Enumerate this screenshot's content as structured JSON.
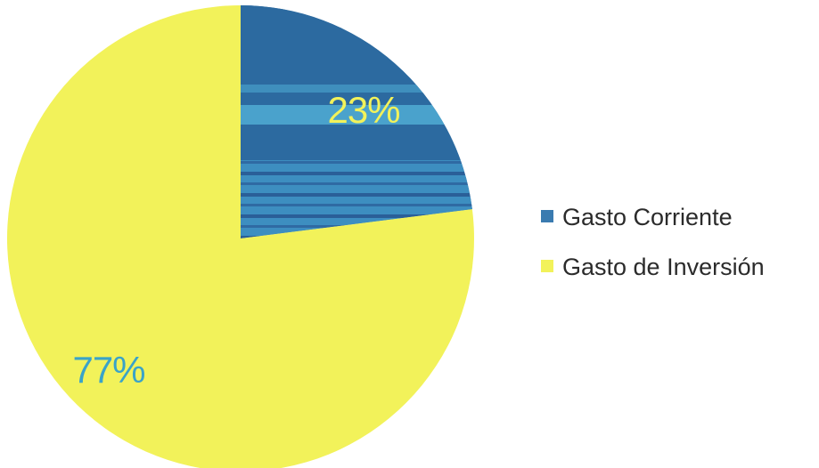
{
  "chart_data": {
    "type": "pie",
    "categories": [
      "Gasto Corriente",
      "Gasto de Inversión"
    ],
    "values": [
      23,
      77
    ],
    "data_labels": [
      "23%",
      "77%"
    ],
    "colors": [
      "#2f6fa3",
      "#f2f25a"
    ],
    "label_colors": [
      "#f2f25a",
      "#3aa3c8"
    ],
    "legend_position": "right",
    "legend": [
      {
        "name": "Gasto Corriente",
        "color": "#3a7bb0"
      },
      {
        "name": "Gasto de Inversión",
        "color": "#f2f25a"
      }
    ],
    "title": "",
    "start_angle_deg": 0,
    "direction": "clockwise"
  }
}
